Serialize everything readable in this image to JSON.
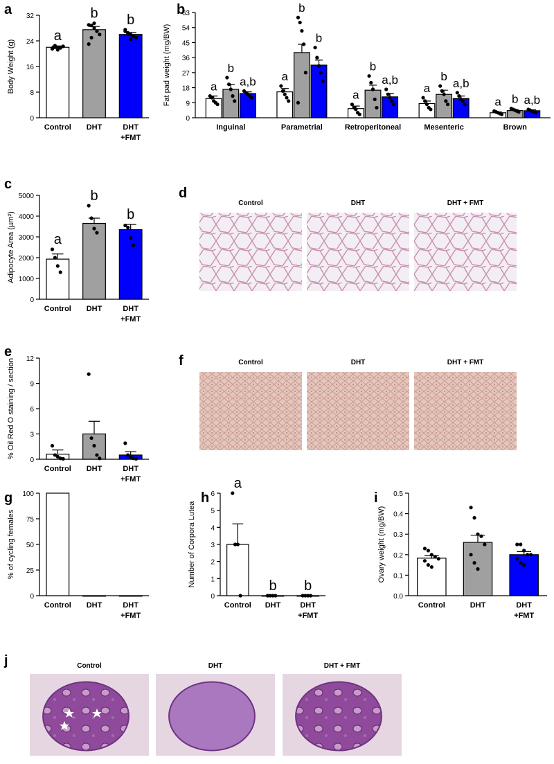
{
  "chart_data": [
    {
      "type": "bar",
      "panel": "a",
      "ylabel": "Body Weight (g)",
      "categories": [
        "Control",
        "DHT",
        "DHT\n+FMT"
      ],
      "values": [
        22,
        27.5,
        26
      ],
      "errors": [
        0.4,
        1,
        0.6
      ],
      "colors": [
        "#ffffff",
        "#a0a0a0",
        "#0000ff"
      ],
      "annotations": [
        "a",
        "b",
        "b"
      ],
      "points": [
        [
          21.5,
          22,
          22,
          21.8,
          22.3,
          21.7,
          22.5,
          21.2
        ],
        [
          29,
          28.8,
          28,
          27,
          26,
          23,
          25,
          29.5
        ],
        [
          27,
          26.5,
          26,
          25.5,
          25,
          27.5,
          26.2,
          24.5
        ]
      ],
      "ylim": [
        0,
        32
      ],
      "yticks": [
        0,
        8,
        16,
        24,
        32
      ]
    },
    {
      "type": "grouped-bar",
      "panel": "b",
      "ylabel": "Fat pad weight (mg/BW)",
      "categories": [
        "Inguinal",
        "Parametrial",
        "Retroperitoneal",
        "Mesenteric",
        "Brown"
      ],
      "series": [
        {
          "color": "#ffffff",
          "values": [
            11.5,
            15.5,
            5.5,
            8.5,
            3
          ],
          "errors": [
            1.5,
            2,
            1.5,
            1.5,
            0.5
          ],
          "annotations": [
            "a",
            "a",
            "a",
            "a",
            "a"
          ],
          "points": [
            [
              13,
              12,
              10,
              9,
              8
            ],
            [
              19,
              16,
              14,
              12,
              10
            ],
            [
              8,
              6,
              5,
              3,
              2
            ],
            [
              12,
              10,
              8,
              6,
              5
            ],
            [
              4,
              3.5,
              3,
              2.5,
              2
            ]
          ]
        },
        {
          "color": "#a0a0a0",
          "values": [
            17,
            39,
            16.5,
            14,
            4.3
          ],
          "errors": [
            3,
            5,
            3,
            2.5,
            0.6
          ],
          "annotations": [
            "b",
            "b",
            "b",
            "b",
            "b"
          ],
          "points": [
            [
              24,
              20,
              17,
              13,
              10
            ],
            [
              60,
              57,
              52,
              44,
              27,
              9
            ],
            [
              25,
              21,
              17,
              11,
              6
            ],
            [
              19,
              16,
              14,
              10,
              8
            ],
            [
              5.5,
              5,
              4.5,
              4,
              3.5
            ]
          ]
        },
        {
          "color": "#0000ff",
          "values": [
            14.5,
            31.5,
            12.5,
            11.5,
            4.2
          ],
          "errors": [
            1,
            3,
            2,
            1.5,
            0.5
          ],
          "annotations": [
            "a,b",
            "b",
            "a,b",
            "a,b",
            "a,b"
          ],
          "points": [
            [
              16,
              15,
              14,
              13,
              12
            ],
            [
              42,
              36,
              31,
              27,
              22
            ],
            [
              17,
              14,
              12,
              10,
              8
            ],
            [
              15,
              13,
              11,
              10,
              8
            ],
            [
              5,
              4.5,
              4,
              3.5,
              3
            ]
          ]
        }
      ],
      "ylim": [
        0,
        63
      ],
      "yticks": [
        0,
        9,
        18,
        27,
        36,
        45,
        54,
        63
      ]
    },
    {
      "type": "bar",
      "panel": "c",
      "ylabel": "Adipocyte Area (µm²)",
      "categories": [
        "Control",
        "DHT",
        "DHT\n+FMT"
      ],
      "values": [
        1930,
        3650,
        3350
      ],
      "errors": [
        250,
        250,
        250
      ],
      "colors": [
        "#ffffff",
        "#a0a0a0",
        "#0000ff"
      ],
      "annotations": [
        "a",
        "b",
        "b"
      ],
      "points": [
        [
          2400,
          2000,
          1600,
          1300
        ],
        [
          4500,
          3900,
          3400,
          3200
        ],
        [
          3550,
          3450,
          2950,
          2600
        ]
      ],
      "ylim": [
        0,
        5000
      ],
      "yticks": [
        0,
        1000,
        2000,
        3000,
        4000,
        5000
      ]
    },
    {
      "type": "bar",
      "panel": "e",
      "ylabel": "% Oil Red O staining / section",
      "categories": [
        "Control",
        "DHT",
        "DHT\n+FMT"
      ],
      "values": [
        0.6,
        3.0,
        0.5
      ],
      "errors": [
        0.5,
        1.5,
        0.4
      ],
      "colors": [
        "#ffffff",
        "#a0a0a0",
        "#0000ff"
      ],
      "points": [
        [
          1.6,
          0.5,
          0.3,
          0.1,
          0.05
        ],
        [
          10.1,
          2.5,
          1.6,
          0.5,
          0.1
        ],
        [
          1.9,
          0.5,
          0.2,
          0.1,
          0.05
        ]
      ],
      "ylim": [
        0,
        12
      ],
      "yticks": [
        0,
        3,
        6,
        9,
        12
      ]
    },
    {
      "type": "bar",
      "panel": "g",
      "ylabel": "% of cycling females",
      "categories": [
        "Control",
        "DHT",
        "DHT\n+FMT"
      ],
      "values": [
        100,
        0,
        0
      ],
      "colors": [
        "#ffffff",
        "#ffffff",
        "#ffffff"
      ],
      "ylim": [
        0,
        100
      ],
      "yticks": [
        0,
        25,
        50,
        75,
        100
      ]
    },
    {
      "type": "bar",
      "panel": "h",
      "ylabel": "Number of Corpora Lutea",
      "categories": [
        "Control",
        "DHT",
        "DHT\n+FMT"
      ],
      "values": [
        3,
        0,
        0
      ],
      "errors": [
        1.2,
        0,
        0
      ],
      "colors": [
        "#ffffff",
        "#a0a0a0",
        "#0000ff"
      ],
      "annotations": [
        "a",
        "b",
        "b"
      ],
      "points": [
        [
          6,
          3,
          3,
          0
        ],
        [
          0,
          0,
          0,
          0
        ],
        [
          0,
          0,
          0,
          0
        ]
      ],
      "ylim": [
        0,
        6
      ],
      "yticks": [
        0,
        1,
        2,
        3,
        4,
        5,
        6
      ]
    },
    {
      "type": "bar",
      "panel": "i",
      "ylabel": "Ovary weight (mg/BW)",
      "categories": [
        "Control",
        "DHT",
        "DHT\n+FMT"
      ],
      "values": [
        0.183,
        0.26,
        0.2
      ],
      "errors": [
        0.012,
        0.035,
        0.015
      ],
      "colors": [
        "#ffffff",
        "#a0a0a0",
        "#0000ff"
      ],
      "points": [
        [
          0.23,
          0.22,
          0.2,
          0.19,
          0.18,
          0.17,
          0.15,
          0.14
        ],
        [
          0.43,
          0.38,
          0.3,
          0.29,
          0.25,
          0.2,
          0.16,
          0.13
        ],
        [
          0.25,
          0.25,
          0.22,
          0.2,
          0.2,
          0.18,
          0.16,
          0.15
        ]
      ],
      "ylim": [
        0,
        0.5
      ],
      "yticks": [
        {
          "value": 0,
          "label": "0.0"
        },
        0.1,
        0.2,
        0.3,
        0.4,
        0.5
      ]
    }
  ],
  "image_panels": [
    {
      "panel": "d",
      "labels": [
        "Control",
        "DHT",
        "DHT + FMT"
      ]
    },
    {
      "panel": "f",
      "labels": [
        "Control",
        "DHT",
        "DHT + FMT"
      ]
    },
    {
      "panel": "j",
      "labels": [
        "Control",
        "DHT",
        "DHT + FMT"
      ]
    }
  ]
}
